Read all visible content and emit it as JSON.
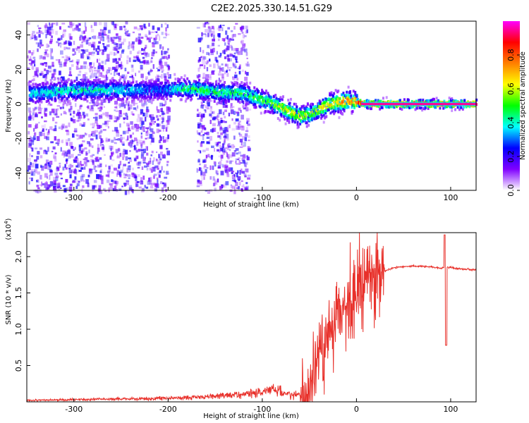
{
  "figure_title": "C2E2.2025.330.14.51.G29",
  "chart_data": [
    {
      "type": "heatmap",
      "title": "C2E2.2025.330.14.51.G29",
      "xlabel": "Height of straight line (km)",
      "ylabel": "Frequency (Hz)",
      "xlim": [
        -350,
        127
      ],
      "ylim": [
        -50,
        48
      ],
      "x_ticks": [
        -300,
        -200,
        -100,
        0,
        100
      ],
      "x_tick_labels": [
        "-300",
        "-200",
        "-100",
        "0",
        "100"
      ],
      "y_ticks": [
        -40,
        -20,
        0,
        20,
        40
      ],
      "y_tick_labels": [
        "-40",
        "-20",
        "0",
        "20",
        "40"
      ],
      "colorbar": {
        "label": "Normalized spectral amplitude",
        "range": [
          0,
          1
        ],
        "ticks": [
          0.0,
          0.2,
          0.4,
          0.6,
          0.8
        ],
        "tick_labels": [
          "0.0",
          "0.2",
          "0.4",
          "0.6",
          "0.8"
        ],
        "colormap": [
          "#ffffff",
          "#8000ff",
          "#0000ff",
          "#00ffff",
          "#00ff00",
          "#ffff00",
          "#ff8000",
          "#ff0000",
          "#ff00ff"
        ]
      },
      "ridge": {
        "x": [
          -345,
          -300,
          -250,
          -210,
          -180,
          -150,
          -120,
          -100,
          -85,
          -70,
          -60,
          -50,
          -40,
          -30,
          -20,
          -10,
          0,
          10,
          30,
          60,
          90,
          127
        ],
        "y": [
          6,
          8,
          8,
          8,
          9,
          7,
          6,
          2,
          -1,
          -5,
          -7,
          -6,
          -3,
          0,
          1,
          2,
          1,
          0,
          0,
          0,
          0,
          0
        ],
        "amplitude": [
          0.35,
          0.4,
          0.35,
          0.25,
          0.45,
          0.45,
          0.45,
          0.5,
          0.55,
          0.6,
          0.6,
          0.55,
          0.6,
          0.65,
          0.7,
          0.75,
          0.8,
          0.85,
          0.85,
          0.85,
          0.85,
          0.85
        ]
      }
    },
    {
      "type": "line",
      "xlabel": "Height of straight line (km)",
      "ylabel": "SNR (10 * v/v)",
      "scale_label": "(x10",
      "scale_exponent": "4",
      "scale_suffix": ")",
      "xlim": [
        -350,
        127
      ],
      "ylim": [
        0,
        2.33
      ],
      "x_ticks": [
        -300,
        -200,
        -100,
        0,
        100
      ],
      "x_tick_labels": [
        "-300",
        "-200",
        "-100",
        "0",
        "100"
      ],
      "y_ticks": [
        0.5,
        1.0,
        1.5,
        2.0
      ],
      "y_tick_labels": [
        "0.5",
        "1.0",
        "1.5",
        "2.0"
      ],
      "color": "#e8302a",
      "series": [
        {
          "name": "SNR",
          "x": [
            -350,
            -300,
            -250,
            -200,
            -175,
            -150,
            -125,
            -110,
            -100,
            -90,
            -80,
            -70,
            -60,
            -50,
            -45,
            -40,
            -35,
            -30,
            -25,
            -20,
            -15,
            -10,
            -5,
            0,
            10,
            20,
            30,
            40,
            60,
            80,
            90,
            95,
            100,
            110,
            127
          ],
          "y": [
            0.02,
            0.03,
            0.04,
            0.05,
            0.06,
            0.08,
            0.1,
            0.12,
            0.14,
            0.18,
            0.15,
            0.11,
            0.1,
            0.12,
            0.35,
            0.55,
            0.75,
            0.9,
            1.0,
            1.1,
            1.25,
            1.35,
            1.45,
            1.55,
            1.62,
            1.7,
            1.8,
            1.85,
            1.87,
            1.86,
            1.84,
            1.86,
            1.85,
            1.83,
            1.82
          ]
        }
      ],
      "annotations": [
        {
          "x": 95,
          "y_min": 0.8,
          "y_max": 2.3,
          "label": "spike"
        }
      ]
    }
  ]
}
